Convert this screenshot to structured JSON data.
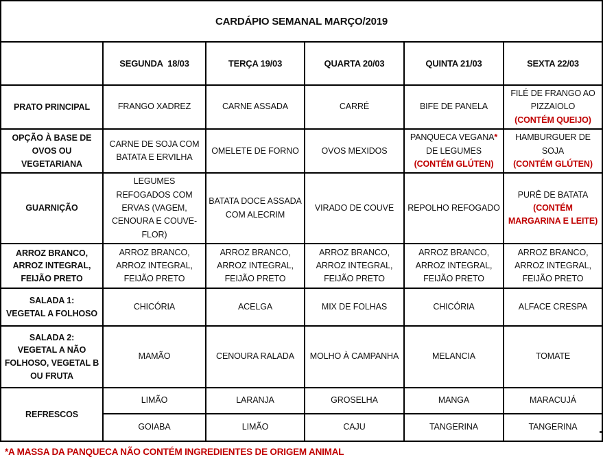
{
  "title": "CARDÁPIO SEMANAL MARÇO/2019",
  "header": {
    "day_columns": [
      "SEGUNDA  18/03",
      "TERÇA 19/03",
      "QUARTA 20/03",
      "QUINTA 21/03",
      "SEXTA 22/03"
    ]
  },
  "rows": [
    {
      "label_lines": [
        "PRATO PRINCIPAL"
      ],
      "sub_rows": [
        [
          [
            {
              "t": "FRANGO XADREZ"
            }
          ],
          [
            {
              "t": "CARNE ASSADA"
            }
          ],
          [
            {
              "t": "CARRÉ"
            }
          ],
          [
            {
              "t": "BIFE DE PANELA"
            }
          ],
          [
            {
              "t": "FILÉ DE FRANGO AO"
            },
            {
              "t": "PIZZAIOLO"
            },
            {
              "t": "(CONTÉM QUEIJO)",
              "red": true
            }
          ]
        ]
      ]
    },
    {
      "label_lines": [
        "OPÇÃO À BASE DE",
        "OVOS OU",
        "VEGETARIANA"
      ],
      "sub_rows": [
        [
          [
            {
              "t": "CARNE DE SOJA COM"
            },
            {
              "t": "BATATA E ERVILHA"
            }
          ],
          [
            {
              "t": "OMELETE DE FORNO"
            }
          ],
          [
            {
              "t": "OVOS MEXIDOS"
            }
          ],
          [
            {
              "t": "PANQUECA VEGANA"
            },
            {
              "t": "*",
              "red": true,
              "same_line": true
            },
            {
              "t": "DE LEGUMES"
            },
            {
              "t": "(CONTÉM GLÚTEN)",
              "red": true
            }
          ],
          [
            {
              "t": "HAMBURGUER DE"
            },
            {
              "t": "SOJA"
            },
            {
              "t": "(CONTÉM GLÚTEN)",
              "red": true
            }
          ]
        ]
      ]
    },
    {
      "label_lines": [
        "GUARNIÇÃO"
      ],
      "sub_rows": [
        [
          [
            {
              "t": "LEGUMES REFOGADOS COM ERVAS (VAGEM, CENOURA E COUVE-FLOR)"
            }
          ],
          [
            {
              "t": "BATATA DOCE ASSADA"
            },
            {
              "t": "COM ALECRIM"
            }
          ],
          [
            {
              "t": "VIRADO DE COUVE"
            }
          ],
          [
            {
              "t": "REPOLHO REFOGADO"
            }
          ],
          [
            {
              "t": "PURÊ DE BATATA"
            },
            {
              "t": "(CONTÉM",
              "red": true
            },
            {
              "t": "MARGARINA E LEITE)",
              "red": true
            }
          ]
        ]
      ]
    },
    {
      "label_lines": [
        "ARROZ BRANCO,",
        "ARROZ INTEGRAL,",
        "FEIJÃO PRETO"
      ],
      "sub_rows": [
        [
          [
            {
              "t": "ARROZ BRANCO,"
            },
            {
              "t": "ARROZ INTEGRAL,"
            },
            {
              "t": "FEIJÃO PRETO"
            }
          ],
          [
            {
              "t": "ARROZ BRANCO,"
            },
            {
              "t": "ARROZ INTEGRAL,"
            },
            {
              "t": "FEIJÃO PRETO"
            }
          ],
          [
            {
              "t": "ARROZ BRANCO,"
            },
            {
              "t": "ARROZ INTEGRAL,"
            },
            {
              "t": "FEIJÃO PRETO"
            }
          ],
          [
            {
              "t": "ARROZ BRANCO,"
            },
            {
              "t": "ARROZ INTEGRAL,"
            },
            {
              "t": "FEIJÃO PRETO"
            }
          ],
          [
            {
              "t": "ARROZ BRANCO,"
            },
            {
              "t": "ARROZ INTEGRAL,"
            },
            {
              "t": "FEIJÃO PRETO"
            }
          ]
        ]
      ]
    },
    {
      "label_lines": [
        "SALADA 1:",
        "VEGETAL A FOLHOSO"
      ],
      "sub_rows": [
        [
          [
            {
              "t": "CHICÓRIA"
            }
          ],
          [
            {
              "t": "ACELGA"
            }
          ],
          [
            {
              "t": "MIX DE FOLHAS"
            }
          ],
          [
            {
              "t": "CHICÓRIA"
            }
          ],
          [
            {
              "t": "ALFACE CRESPA"
            }
          ]
        ]
      ]
    },
    {
      "label_lines": [
        "SALADA 2:",
        "VEGETAL A NÃO",
        "FOLHOSO, VEGETAL B",
        "OU FRUTA"
      ],
      "sub_rows": [
        [
          [
            {
              "t": "MAMÃO"
            }
          ],
          [
            {
              "t": "CENOURA RALADA"
            }
          ],
          [
            {
              "t": "MOLHO À CAMPANHA"
            }
          ],
          [
            {
              "t": "MELANCIA"
            }
          ],
          [
            {
              "t": "TOMATE"
            }
          ]
        ]
      ]
    },
    {
      "label_lines": [
        "REFRESCOS"
      ],
      "sub_rows": [
        [
          [
            {
              "t": "LIMÃO"
            }
          ],
          [
            {
              "t": "LARANJA"
            }
          ],
          [
            {
              "t": "GROSELHA"
            }
          ],
          [
            {
              "t": "MANGA"
            }
          ],
          [
            {
              "t": "MARACUJÁ"
            }
          ]
        ],
        [
          [
            {
              "t": "GOIABA"
            }
          ],
          [
            {
              "t": "LIMÃO"
            }
          ],
          [
            {
              "t": "CAJU"
            }
          ],
          [
            {
              "t": "TANGERINA"
            }
          ],
          [
            {
              "t": "TANGERINA"
            }
          ]
        ]
      ]
    }
  ],
  "footnote": "*A MASSA DA PANQUECA NÃO CONTÉM INGREDIENTES DE ORIGEM ANIMAL",
  "colors": {
    "alert_red": "#C00000",
    "border_black": "#000000"
  }
}
